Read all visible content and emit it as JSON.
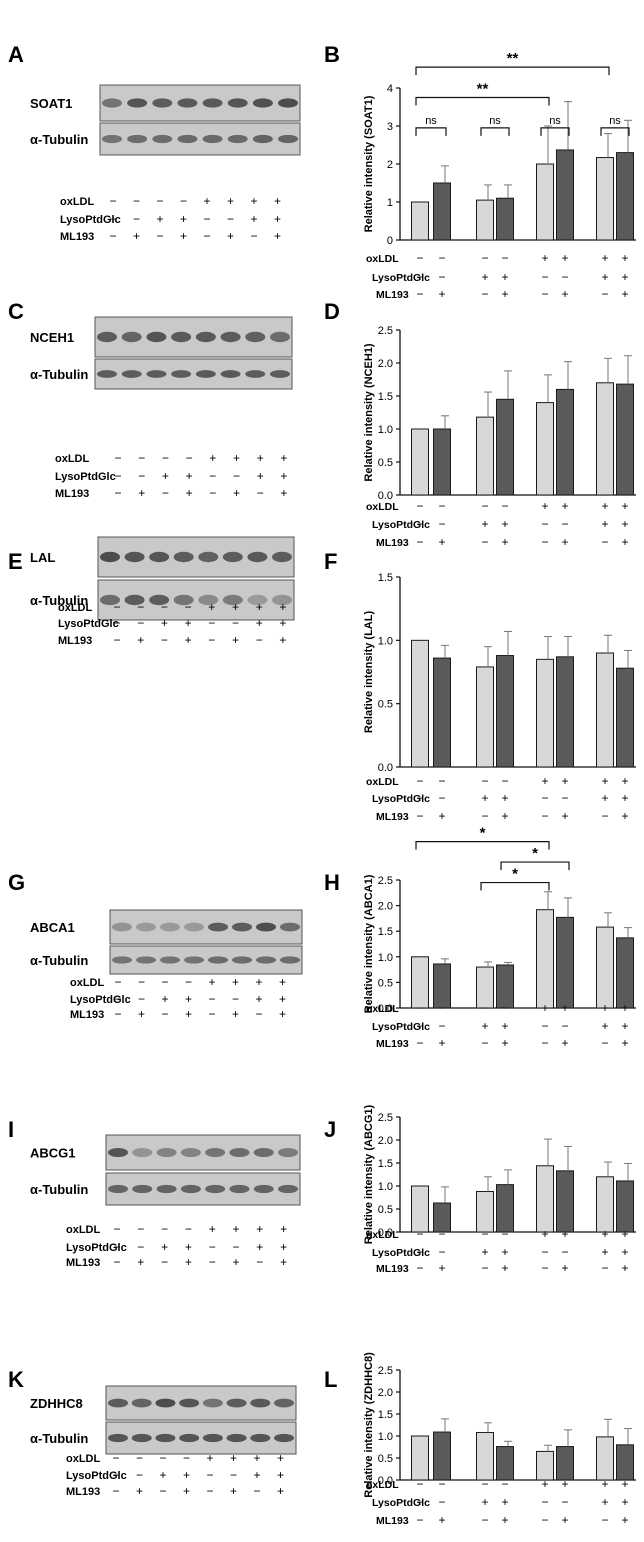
{
  "colors": {
    "light_bar": "#d8d8d8",
    "dark_bar": "#5a5a5a",
    "bar_stroke": "#1a1a1a",
    "blot_bg": "#c9c9c9",
    "band": "#2e2e2e",
    "axis": "#111111"
  },
  "conditions": {
    "row_labels": [
      "oxLDL",
      "LysoPtdGlc",
      "ML193"
    ],
    "blot_signs": [
      [
        "−",
        "−",
        "−",
        "−",
        "+",
        "+",
        "+",
        "+"
      ],
      [
        "−",
        "−",
        "+",
        "+",
        "−",
        "−",
        "+",
        "+"
      ],
      [
        "−",
        "+",
        "−",
        "+",
        "−",
        "+",
        "−",
        "+"
      ]
    ],
    "chart_signs": [
      [
        "−",
        "−",
        "−",
        "−",
        "+",
        "+",
        "+",
        "+"
      ],
      [
        "−",
        "−",
        "+",
        "+",
        "−",
        "−",
        "+",
        "+"
      ],
      [
        "−",
        "+",
        "−",
        "+",
        "−",
        "+",
        "−",
        "+"
      ]
    ]
  },
  "blots": [
    {
      "letter": "A",
      "protein": "SOAT1",
      "control": "α-Tubulin"
    },
    {
      "letter": "C",
      "protein": "NCEH1",
      "control": "α-Tubulin"
    },
    {
      "letter": "E",
      "protein": "LAL",
      "control": "α-Tubulin"
    },
    {
      "letter": "G",
      "protein": "ABCA1",
      "control": "α-Tubulin"
    },
    {
      "letter": "I",
      "protein": "ABCG1",
      "control": "α-Tubulin"
    },
    {
      "letter": "K",
      "protein": "ZDHHC8",
      "control": "α-Tubulin"
    }
  ],
  "chart_data": [
    {
      "letter": "B",
      "type": "bar",
      "ylabel": "Relative intensity (SOAT1)",
      "ylim": [
        0,
        4
      ],
      "ticks": [
        "0",
        "1",
        "2",
        "3",
        "4"
      ],
      "values": [
        1.0,
        1.5,
        1.05,
        1.1,
        2.0,
        2.37,
        2.17,
        2.3
      ],
      "errors": [
        0,
        0.45,
        0.4,
        0.35,
        1.0,
        1.27,
        0.63,
        0.85
      ],
      "annotations": [
        {
          "from": 0,
          "to": 6,
          "label": "**",
          "y": 4.55
        },
        {
          "from": 0,
          "to": 4,
          "label": "**",
          "y": 3.75
        },
        {
          "from": 0,
          "to": 1,
          "label": "ns",
          "y": 2.95
        },
        {
          "from": 2,
          "to": 3,
          "label": "ns",
          "y": 2.95
        },
        {
          "from": 4,
          "to": 5,
          "label": "ns",
          "y": 2.95
        },
        {
          "from": 6,
          "to": 7,
          "label": "ns",
          "y": 2.95
        }
      ]
    },
    {
      "letter": "D",
      "type": "bar",
      "ylabel": "Relative intensity (NCEH1)",
      "ylim": [
        0,
        2.5
      ],
      "ticks": [
        "0.0",
        "0.5",
        "1.0",
        "1.5",
        "2.0",
        "2.5"
      ],
      "values": [
        1.0,
        1.0,
        1.18,
        1.45,
        1.4,
        1.6,
        1.7,
        1.68
      ],
      "errors": [
        0,
        0.2,
        0.38,
        0.43,
        0.42,
        0.42,
        0.37,
        0.43
      ],
      "annotations": []
    },
    {
      "letter": "F",
      "type": "bar",
      "ylabel": "Relative intensity (LAL)",
      "ylim": [
        0,
        1.5
      ],
      "ticks": [
        "0.0",
        "0.5",
        "1.0",
        "1.5"
      ],
      "values": [
        1.0,
        0.86,
        0.79,
        0.88,
        0.85,
        0.87,
        0.9,
        0.78
      ],
      "errors": [
        0,
        0.1,
        0.16,
        0.19,
        0.18,
        0.16,
        0.14,
        0.14
      ],
      "annotations": []
    },
    {
      "letter": "H",
      "type": "bar",
      "ylabel": "Relative intensity (ABCA1)",
      "ylim": [
        0,
        2.5
      ],
      "ticks": [
        "0.0",
        "0.5",
        "1.0",
        "1.5",
        "2.0",
        "2.5"
      ],
      "values": [
        1.0,
        0.86,
        0.8,
        0.84,
        1.92,
        1.77,
        1.58,
        1.37
      ],
      "errors": [
        0,
        0.1,
        0.1,
        0.05,
        0.35,
        0.38,
        0.28,
        0.2
      ],
      "annotations": [
        {
          "from": 0,
          "to": 4,
          "label": "*",
          "y": 3.25
        },
        {
          "from": 3,
          "to": 5,
          "label": "*",
          "y": 2.85
        },
        {
          "from": 2,
          "to": 4,
          "label": "*",
          "y": 2.45
        }
      ]
    },
    {
      "letter": "J",
      "type": "bar",
      "ylabel": "Relative intensity (ABCG1)",
      "ylim": [
        0,
        2.5
      ],
      "ticks": [
        "0.0",
        "0.5",
        "1.0",
        "1.5",
        "2.0",
        "2.5"
      ],
      "values": [
        1.0,
        0.63,
        0.88,
        1.03,
        1.44,
        1.33,
        1.2,
        1.11
      ],
      "errors": [
        0,
        0.35,
        0.32,
        0.32,
        0.58,
        0.53,
        0.32,
        0.38
      ],
      "annotations": []
    },
    {
      "letter": "L",
      "type": "bar",
      "ylabel": "Relative intensity (ZDHHC8)",
      "ylim": [
        0,
        2.5
      ],
      "ticks": [
        "0.0",
        "0.5",
        "1.0",
        "1.5",
        "2.0",
        "2.5"
      ],
      "values": [
        1.0,
        1.09,
        1.08,
        0.76,
        0.65,
        0.76,
        0.98,
        0.8
      ],
      "errors": [
        0,
        0.3,
        0.22,
        0.12,
        0.14,
        0.38,
        0.4,
        0.37
      ],
      "annotations": []
    }
  ]
}
